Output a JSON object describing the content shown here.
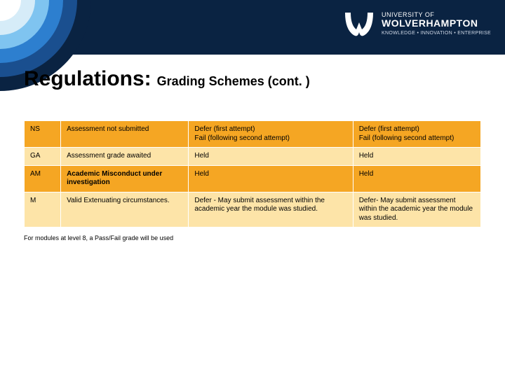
{
  "header": {
    "logo": {
      "university_of": "UNIVERSITY OF",
      "name": "WOLVERHAMPTON",
      "tagline": "KNOWLEDGE • INNOVATION • ENTERPRISE"
    },
    "band_color": "#0a2342",
    "arc_colors": [
      "#0a2342",
      "#1a4f8f",
      "#2d7fcf",
      "#7fc4f0",
      "#d6ecf8",
      "#ffffff"
    ]
  },
  "title": {
    "main": "Regulations:",
    "sub": "Grading Schemes (cont. )",
    "main_fontsize": 30,
    "sub_fontsize": 18
  },
  "table": {
    "column_widths_pct": [
      8,
      28,
      36,
      28
    ],
    "row_colors": {
      "orange": "#f5a623",
      "cream": "#fde4a8"
    },
    "border_color": "#ffffff",
    "cell_fontsize": 10,
    "rows": [
      {
        "style": "orange",
        "cells": [
          "NS",
          "Assessment not submitted",
          "Defer (first attempt)\nFail (following second attempt)",
          "Defer (first attempt)\nFail (following second attempt)"
        ]
      },
      {
        "style": "cream",
        "cells": [
          "GA",
          "Assessment grade awaited",
          "Held",
          "Held"
        ]
      },
      {
        "style": "orange",
        "cells": [
          "AM",
          "Academic Misconduct under investigation",
          "Held",
          "Held"
        ],
        "bold_cells": [
          1
        ]
      },
      {
        "style": "cream",
        "cells": [
          "M",
          "Valid Extenuating circumstances.",
          "Defer - May submit assessment within the academic year the module was studied.",
          "Defer- May submit assessment within the academic year the module was studied."
        ]
      }
    ],
    "footnote": "For modules at level 8, a Pass/Fail grade will be used"
  }
}
